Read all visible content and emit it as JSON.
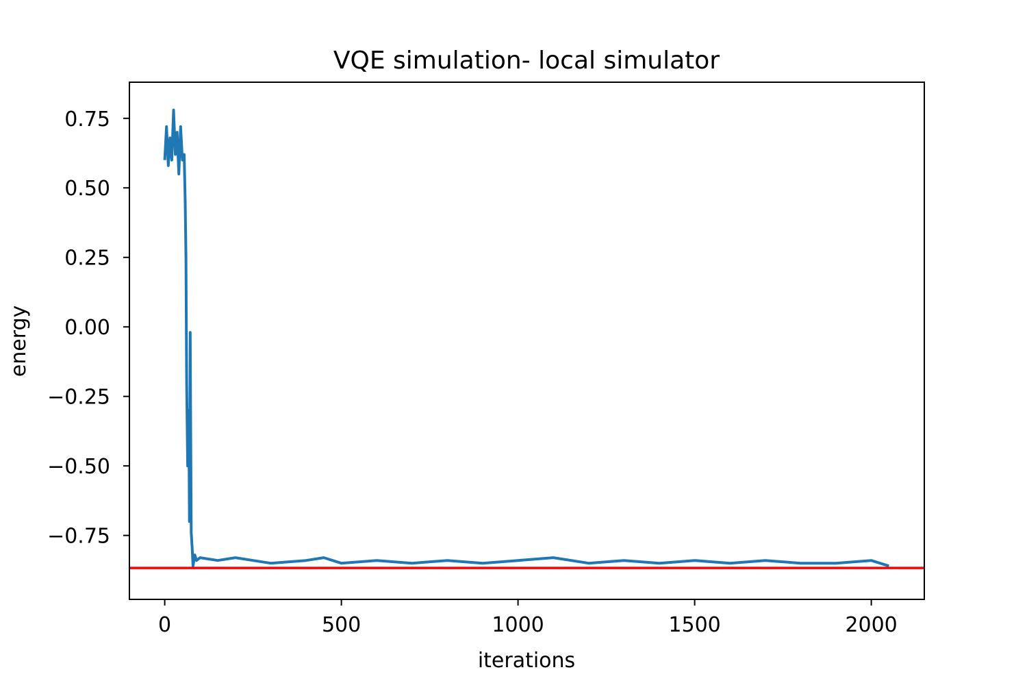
{
  "chart_data": {
    "type": "line",
    "title": "VQE simulation- local simulator",
    "xlabel": "iterations",
    "ylabel": "energy",
    "xlim": [
      -100,
      2150
    ],
    "ylim": [
      -0.98,
      0.88
    ],
    "x_ticks": [
      0,
      500,
      1000,
      1500,
      2000
    ],
    "x_tick_labels": [
      "0",
      "500",
      "1000",
      "1500",
      "2000"
    ],
    "y_ticks": [
      0.75,
      0.5,
      0.25,
      0.0,
      -0.25,
      -0.5,
      -0.75
    ],
    "y_tick_labels": [
      "0.75",
      "0.50",
      "0.25",
      "0.00",
      "−0.25",
      "−0.50",
      "−0.75"
    ],
    "grid": false,
    "series": [
      {
        "color": "#1f77b4",
        "x": [
          0,
          5,
          10,
          15,
          20,
          25,
          30,
          35,
          40,
          45,
          50,
          55,
          58,
          60,
          62,
          65,
          68,
          70,
          72,
          75,
          78,
          80,
          85,
          90,
          100,
          150,
          200,
          250,
          300,
          400,
          450,
          500,
          600,
          700,
          800,
          900,
          1000,
          1100,
          1200,
          1300,
          1400,
          1500,
          1600,
          1700,
          1800,
          1900,
          2000,
          2050
        ],
        "y": [
          0.6,
          0.72,
          0.58,
          0.68,
          0.6,
          0.78,
          0.62,
          0.7,
          0.55,
          0.72,
          0.6,
          0.62,
          0.45,
          0.25,
          -0.2,
          -0.5,
          -0.3,
          -0.7,
          -0.02,
          -0.74,
          -0.8,
          -0.86,
          -0.82,
          -0.84,
          -0.83,
          -0.84,
          -0.83,
          -0.84,
          -0.85,
          -0.84,
          -0.83,
          -0.85,
          -0.84,
          -0.85,
          -0.84,
          -0.85,
          -0.84,
          -0.83,
          -0.85,
          -0.84,
          -0.85,
          -0.84,
          -0.85,
          -0.84,
          -0.85,
          -0.85,
          -0.84,
          -0.86
        ]
      },
      {
        "color": "#ff0000",
        "x": [
          -100,
          2150
        ],
        "y": [
          -0.867,
          -0.867
        ]
      }
    ]
  }
}
